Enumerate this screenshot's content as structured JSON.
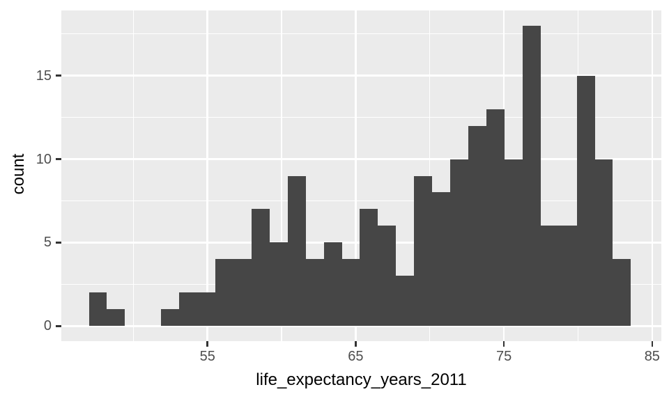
{
  "chart_data": {
    "type": "bar",
    "subtype": "histogram",
    "title": "",
    "xlabel": "life_expectancy_years_2011",
    "ylabel": "count",
    "bin_start": 47.0,
    "bin_width": 1.219,
    "counts": [
      2,
      1,
      0,
      0,
      1,
      2,
      2,
      4,
      4,
      7,
      5,
      9,
      4,
      5,
      4,
      7,
      6,
      3,
      9,
      8,
      10,
      12,
      13,
      10,
      18,
      6,
      6,
      15,
      10,
      4
    ],
    "total_count": 187,
    "x_major_ticks": [
      55,
      65,
      75,
      85
    ],
    "x_minor_gridlines": [
      50,
      60,
      70,
      80
    ],
    "y_major_ticks": [
      0,
      5,
      10,
      15
    ],
    "y_minor_gridlines": [
      2.5,
      7.5,
      12.5,
      17.5
    ],
    "xlim": [
      45.14,
      85.62
    ],
    "ylim": [
      -0.9,
      18.9
    ],
    "grid": "on",
    "legend": "none",
    "style": {
      "bar_fill": "#464646",
      "panel_background": "#EBEBEB",
      "figure_background": "#FFFFFF",
      "gridline_color": "#FFFFFF",
      "tick_label_color": "#4D4D4D",
      "axis_title_color": "#000000",
      "tick_mark_color": "#333333"
    }
  }
}
